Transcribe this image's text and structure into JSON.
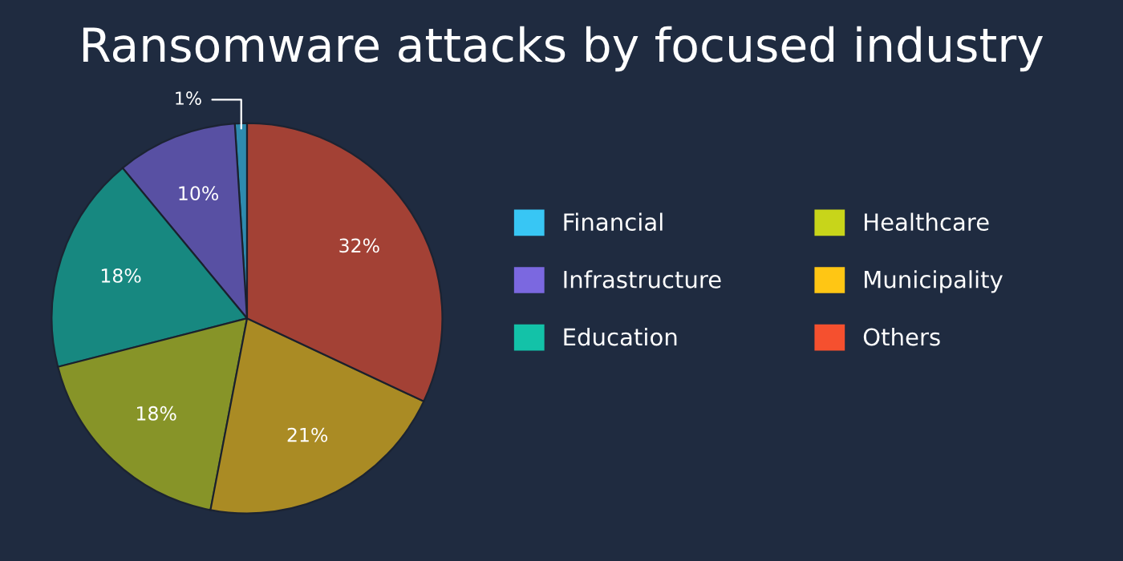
{
  "chart_data": {
    "type": "pie",
    "title": "Ransomware attacks by focused industry",
    "categories": [
      "Financial",
      "Infrastructure",
      "Education",
      "Healthcare",
      "Municipality",
      "Others"
    ],
    "values": [
      1,
      10,
      18,
      18,
      21,
      32
    ],
    "colors": [
      "#38c6f4",
      "#7b68e0",
      "#13c2a8",
      "#c8d51a",
      "#ffc614",
      "#f5502f"
    ],
    "value_labels": [
      "1%",
      "10%",
      "18%",
      "18%",
      "21%",
      "32%"
    ],
    "legend": "right"
  }
}
